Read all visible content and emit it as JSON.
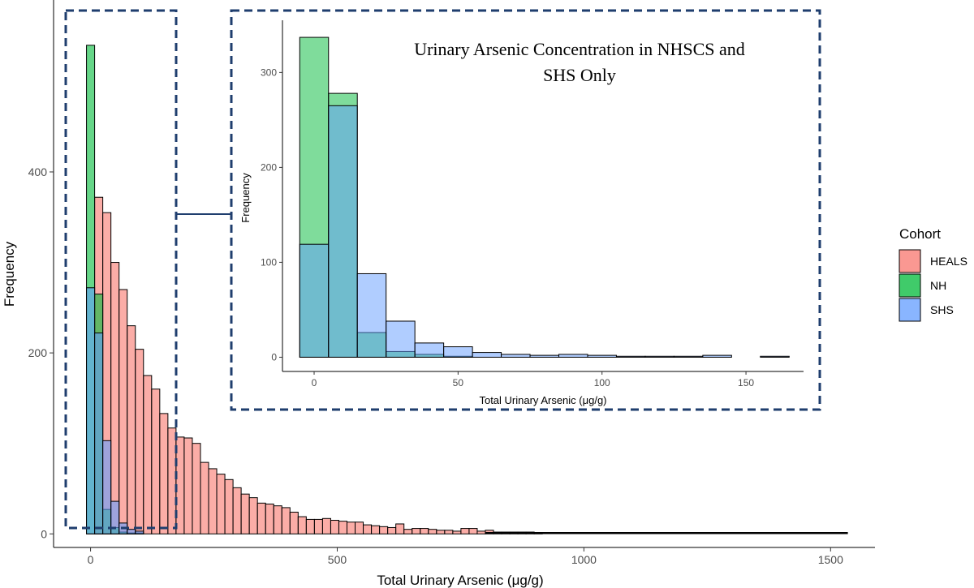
{
  "chart_data": [
    {
      "type": "histogram",
      "name": "main",
      "title": "",
      "xlabel": "Total Urinary Arsenic (μg/g)",
      "ylabel": "Frequency",
      "xlim": [
        -75,
        1590
      ],
      "ylim": [
        -15,
        590
      ],
      "xticks": [
        0,
        500,
        1000,
        1500
      ],
      "yticks": [
        0,
        200,
        400
      ],
      "bin_width": 16.5,
      "series": [
        {
          "name": "HEALS",
          "color": "#F8766D",
          "bins_start": 8.25,
          "values": [
            372,
            355,
            300,
            270,
            230,
            204,
            175,
            160,
            133,
            117,
            107,
            106,
            100,
            79,
            72,
            66,
            60,
            51,
            44,
            40,
            34,
            33,
            31,
            29,
            24,
            19,
            16,
            16,
            17,
            15,
            14,
            13,
            13,
            10,
            9,
            8,
            7,
            11,
            5,
            6,
            6,
            5,
            4,
            4,
            3,
            6,
            6,
            3,
            4,
            2,
            2,
            2,
            2,
            2,
            1
          ]
        },
        {
          "name": "NH",
          "color": "#00BA38",
          "bins_start": -8.25,
          "values": [
            540,
            265,
            27,
            7,
            2,
            1,
            1
          ]
        },
        {
          "name": "SHS",
          "color": "#619CFF",
          "bins_start": -8.25,
          "values": [
            272,
            222,
            103,
            36,
            12,
            5,
            3
          ]
        }
      ],
      "legend": {
        "title": "Cohort",
        "position": "right",
        "entries": [
          "HEALS",
          "NH",
          "SHS"
        ]
      }
    },
    {
      "type": "histogram",
      "name": "inset",
      "title": "Urinary Arsenic Concentration in NHSCS and SHS Only",
      "title_lines": [
        "Urinary Arsenic Concentration in NHSCS and",
        "SHS Only"
      ],
      "xlabel": "Total Urinary Arsenic (μg/g)",
      "ylabel": "Frequency",
      "xlim": [
        -11,
        170
      ],
      "ylim": [
        -15,
        355
      ],
      "xticks": [
        0,
        50,
        100,
        150
      ],
      "yticks": [
        0,
        100,
        200,
        300
      ],
      "bin_width": 10,
      "bins_start": -5,
      "series": [
        {
          "name": "NH",
          "color": "#00BA38",
          "values": [
            337,
            278,
            26,
            6,
            3,
            1,
            0,
            0,
            0,
            0,
            0,
            0,
            0,
            0,
            0,
            0,
            0
          ]
        },
        {
          "name": "SHS",
          "color": "#619CFF",
          "values": [
            119,
            265,
            88,
            38,
            15,
            11,
            5,
            3,
            2,
            3,
            2,
            1,
            1,
            1,
            2,
            0,
            1
          ]
        }
      ]
    }
  ]
}
